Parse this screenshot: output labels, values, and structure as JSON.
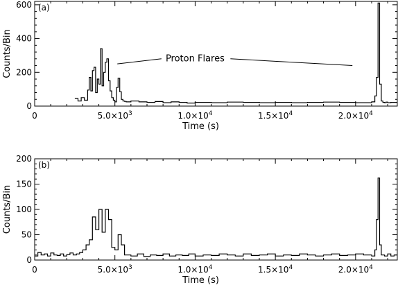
{
  "chart_data": [
    {
      "type": "line",
      "step": true,
      "panel_label": "(a)",
      "title": "",
      "xlabel": "Time (s)",
      "ylabel": "Counts/Bin",
      "xlim": [
        0,
        22600
      ],
      "ylim": [
        0,
        620
      ],
      "x_ticks": [
        {
          "value": 0,
          "mant": "0",
          "exp": ""
        },
        {
          "value": 5000,
          "mant": "5.0×10",
          "exp": "3"
        },
        {
          "value": 10000,
          "mant": "1.0×10",
          "exp": "4"
        },
        {
          "value": 15000,
          "mant": "1.5×10",
          "exp": "4"
        },
        {
          "value": 20000,
          "mant": "2.0×10",
          "exp": "4"
        }
      ],
      "y_ticks": [
        0,
        200,
        400,
        600
      ],
      "annotation": {
        "text": "Proton Flares",
        "pointers": [
          {
            "from": [
              5150,
              250
            ],
            "to": [
              7900,
              280
            ]
          },
          {
            "from": [
              12200,
              280
            ],
            "to": [
              19800,
              240
            ]
          }
        ]
      },
      "series": [
        {
          "x": [
            2500,
            2700,
            2900,
            3100,
            3300,
            3400,
            3500,
            3600,
            3700,
            3800,
            3900,
            4000,
            4100,
            4200,
            4300,
            4400,
            4500,
            4600,
            4700,
            4800,
            4900,
            5000,
            5100,
            5200,
            5300,
            5400,
            5500,
            5600,
            5700,
            6000,
            6500,
            7000,
            7500,
            8000,
            8500,
            9000,
            9500,
            10000,
            11000,
            12000,
            13000,
            14000,
            15000,
            16000,
            17000,
            18000,
            19000,
            20000,
            21000,
            21200,
            21300,
            21400,
            21500,
            21600,
            21700,
            21800,
            21900,
            22000,
            22200,
            22400
          ],
          "values": [
            45,
            30,
            50,
            35,
            95,
            170,
            90,
            210,
            230,
            80,
            160,
            130,
            340,
            120,
            200,
            260,
            280,
            150,
            90,
            50,
            35,
            25,
            110,
            165,
            85,
            40,
            30,
            28,
            25,
            30,
            25,
            22,
            27,
            20,
            25,
            22,
            18,
            22,
            20,
            24,
            22,
            20,
            22,
            20,
            22,
            24,
            22,
            20,
            25,
            60,
            170,
            610,
            130,
            30,
            22,
            20,
            24,
            20,
            22,
            22
          ]
        }
      ]
    },
    {
      "type": "line",
      "step": true,
      "panel_label": "(b)",
      "title": "",
      "xlabel": "Time (s)",
      "ylabel": "Counts/Bin",
      "xlim": [
        0,
        22600
      ],
      "ylim": [
        0,
        200
      ],
      "x_ticks": [
        {
          "value": 0,
          "mant": "0",
          "exp": ""
        },
        {
          "value": 5000,
          "mant": "5.0×10",
          "exp": "3"
        },
        {
          "value": 10000,
          "mant": "1.0×10",
          "exp": "4"
        },
        {
          "value": 15000,
          "mant": "1.5×10",
          "exp": "4"
        },
        {
          "value": 20000,
          "mant": "2.0×10",
          "exp": "4"
        }
      ],
      "y_ticks": [
        0,
        50,
        100,
        150,
        200
      ],
      "series": [
        {
          "x": [
            0,
            200,
            400,
            600,
            800,
            1000,
            1200,
            1400,
            1600,
            1800,
            2000,
            2200,
            2400,
            2600,
            2800,
            3000,
            3200,
            3400,
            3600,
            3800,
            4000,
            4200,
            4400,
            4600,
            4800,
            5000,
            5200,
            5400,
            5600,
            6000,
            6400,
            6800,
            7200,
            7600,
            8000,
            8400,
            8800,
            9200,
            9600,
            10000,
            10500,
            11000,
            11500,
            12000,
            12500,
            13000,
            13500,
            14000,
            14500,
            15000,
            15500,
            16000,
            16500,
            17000,
            17500,
            18000,
            18500,
            19000,
            19500,
            20000,
            20500,
            21000,
            21200,
            21300,
            21400,
            21500,
            21600,
            21800,
            22000,
            22200,
            22400
          ],
          "values": [
            8,
            15,
            10,
            12,
            8,
            14,
            10,
            9,
            12,
            8,
            11,
            14,
            10,
            12,
            15,
            20,
            30,
            40,
            85,
            60,
            100,
            55,
            100,
            80,
            25,
            20,
            50,
            30,
            10,
            8,
            12,
            7,
            10,
            9,
            12,
            8,
            10,
            9,
            12,
            8,
            10,
            9,
            12,
            10,
            8,
            12,
            9,
            10,
            12,
            8,
            10,
            9,
            12,
            10,
            8,
            10,
            12,
            9,
            10,
            12,
            10,
            8,
            20,
            80,
            162,
            30,
            10,
            8,
            12,
            8,
            10
          ]
        }
      ]
    }
  ]
}
